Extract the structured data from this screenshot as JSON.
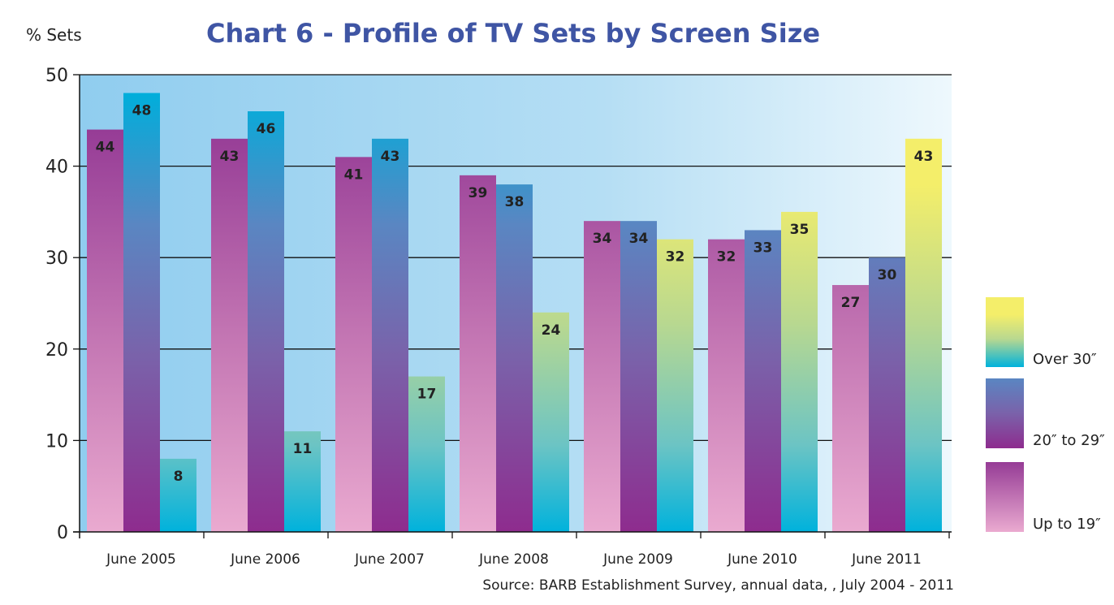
{
  "chart_data": {
    "type": "bar",
    "title": "Chart  6 - Profile of TV Sets by Screen Size",
    "ylabel": "% Sets",
    "xlabel": "",
    "ylim": [
      0,
      50
    ],
    "yticks": [
      0,
      10,
      20,
      30,
      40,
      50
    ],
    "grid": true,
    "legend_position": "right",
    "categories": [
      "June 2005",
      "June 2006",
      "June 2007",
      "June 2008",
      "June 2009",
      "June 2010",
      "June 2011"
    ],
    "series": [
      {
        "name": "Up to 19″",
        "values": [
          44,
          43,
          41,
          39,
          34,
          32,
          27
        ],
        "colors": [
          "#eaaad0",
          "#c274b2",
          "#963c96"
        ]
      },
      {
        "name": "20″ to 29″",
        "values": [
          48,
          46,
          43,
          38,
          34,
          33,
          30
        ],
        "colors": [
          "#8e2c8e",
          "#7a62aa",
          "#00aedb"
        ]
      },
      {
        "name": "Over 30″",
        "values": [
          8,
          11,
          17,
          24,
          32,
          35,
          43
        ],
        "colors": [
          "#00b2dc",
          "#b8d890",
          "#f4ee6a"
        ]
      }
    ],
    "source": "Source: BARB Establishment Survey, annual data, , July 2004 - 2011"
  },
  "colors": {
    "title": "#3f55a4",
    "bg_left": "#90cdef",
    "bg_right": "#eef8fd"
  }
}
